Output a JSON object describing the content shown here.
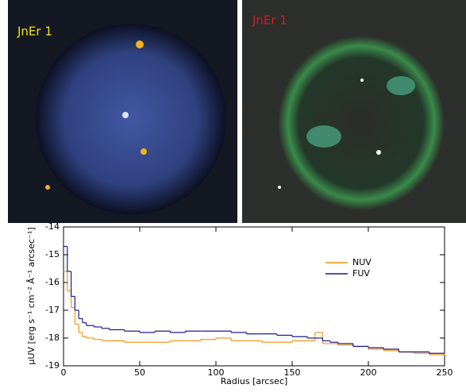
{
  "panels": {
    "left_label": "JnEr 1",
    "right_label": "JnEr 1"
  },
  "chart_data": {
    "type": "line",
    "step": true,
    "xlabel": "Radius [arcsec]",
    "ylabel": "μUV [erg s⁻¹ cm⁻² Å⁻¹ arcsec⁻¹]",
    "xlim": [
      0,
      250
    ],
    "xticks": [
      0,
      50,
      100,
      150,
      200,
      250
    ],
    "ylim": [
      -19,
      -14
    ],
    "yticks": [
      -19,
      -18,
      -17,
      -16,
      -15,
      -14
    ],
    "legend": "upper right",
    "x": [
      0,
      2.5,
      5,
      7.5,
      10,
      12.5,
      15,
      20,
      25,
      30,
      40,
      50,
      60,
      70,
      80,
      90,
      100,
      110,
      120,
      130,
      140,
      150,
      160,
      165,
      170,
      175,
      180,
      190,
      200,
      210,
      220,
      230,
      240,
      250
    ],
    "series": [
      {
        "name": "NUV",
        "color": "#f7941d",
        "values": [
          -15.6,
          -16.3,
          -16.9,
          -17.5,
          -17.8,
          -17.95,
          -18.0,
          -18.05,
          -18.1,
          -18.1,
          -18.15,
          -18.15,
          -18.15,
          -18.1,
          -18.1,
          -18.05,
          -18.0,
          -18.1,
          -18.1,
          -18.15,
          -18.15,
          -18.1,
          -18.1,
          -17.8,
          -18.2,
          -18.2,
          -18.25,
          -18.3,
          -18.4,
          -18.45,
          -18.5,
          -18.55,
          -18.6,
          -18.55
        ]
      },
      {
        "name": "FUV",
        "color": "#1c1c8c",
        "values": [
          -14.7,
          -15.6,
          -16.5,
          -17.0,
          -17.3,
          -17.45,
          -17.55,
          -17.6,
          -17.65,
          -17.7,
          -17.75,
          -17.8,
          -17.75,
          -17.8,
          -17.75,
          -17.75,
          -17.75,
          -17.8,
          -17.85,
          -17.85,
          -17.9,
          -17.95,
          -18.0,
          -18.0,
          -18.1,
          -18.15,
          -18.2,
          -18.3,
          -18.35,
          -18.4,
          -18.5,
          -18.5,
          -18.55,
          -18.5
        ]
      }
    ]
  }
}
